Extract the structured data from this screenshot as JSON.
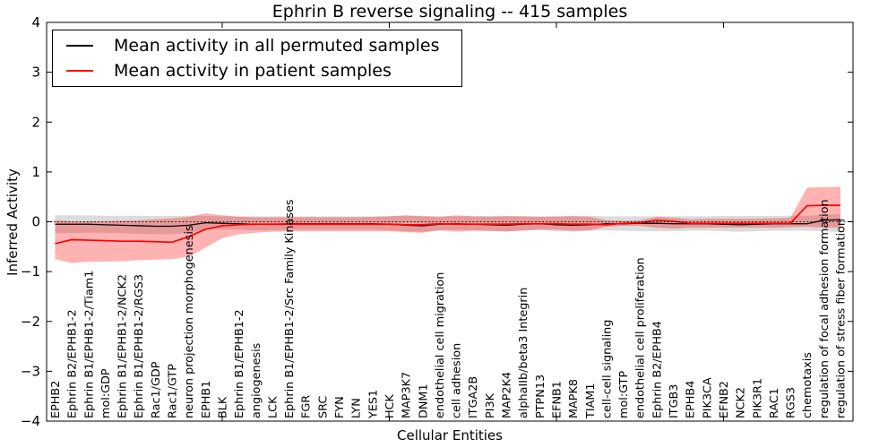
{
  "chart_data": {
    "type": "line",
    "title": "Ephrin B reverse signaling -- 415 samples",
    "xlabel": "Cellular Entities",
    "ylabel": "Inferred Activity",
    "ylim": [
      -4,
      4
    ],
    "yticks": [
      4,
      3,
      2,
      1,
      0,
      -1,
      -2,
      -3,
      -4
    ],
    "ytick_labels": [
      "4",
      "3",
      "2",
      "1",
      "0",
      "−1",
      "−2",
      "−3",
      "−4"
    ],
    "grid": false,
    "legend_position": "upper left",
    "zero_line": {
      "y": 0,
      "style": "dotted",
      "color": "#000000"
    },
    "categories": [
      "EPHB2",
      "Ephrin B2/EPHB1-2",
      "Ephrin B1/EPHB1-2/Tiam1",
      "mol:GDP",
      "Ephrin B1/EPHB1-2/NCK2",
      "Ephrin B1/EPHB1-2/RGS3",
      "Rac1/GDP",
      "Rac1/GTP",
      "neuron projection morphogenesis",
      "EPHB1",
      "BLK",
      "Ephrin B1/EPHB1-2",
      "angiogenesis",
      "LCK",
      "Ephrin B1/EPHB1-2/Src Family Kinases",
      "FGR",
      "SRC",
      "FYN",
      "LYN",
      "YES1",
      "HCK",
      "MAP3K7",
      "DNM1",
      "endothelial cell migration",
      "cell adhesion",
      "ITGA2B",
      "PI3K",
      "MAP2K4",
      "alphaIIb/beta3 Integrin",
      "PTPN13",
      "EFNB1",
      "MAPK8",
      "TIAM1",
      "cell-cell signaling",
      "mol:GTP",
      "endothelial cell proliferation",
      "Ephrin B2/EPHB4",
      "ITGB3",
      "EPHB4",
      "PIK3CA",
      "EFNB2",
      "NCK2",
      "PIK3R1",
      "RAC1",
      "RGS3",
      "chemotaxis",
      "regulation of focal adhesion formation",
      "regulation of stress fiber formation"
    ],
    "series": [
      {
        "name": "Mean activity in all permuted samples",
        "color": "#000000",
        "line_width": 1.3,
        "values": [
          -0.05,
          -0.05,
          -0.05,
          -0.06,
          -0.07,
          -0.08,
          -0.09,
          -0.09,
          -0.07,
          -0.02,
          -0.03,
          -0.04,
          -0.05,
          -0.05,
          -0.04,
          -0.04,
          -0.04,
          -0.04,
          -0.04,
          -0.04,
          -0.05,
          -0.07,
          -0.08,
          -0.05,
          -0.04,
          -0.05,
          -0.06,
          -0.07,
          -0.05,
          -0.04,
          -0.06,
          -0.07,
          -0.06,
          -0.04,
          -0.04,
          -0.03,
          -0.03,
          -0.04,
          -0.04,
          -0.04,
          -0.05,
          -0.06,
          -0.05,
          -0.04,
          -0.04,
          -0.04,
          0.03,
          0.04
        ],
        "band": {
          "color": "rgba(128,128,128,0.28)",
          "upper": [
            0.13,
            0.13,
            0.13,
            0.12,
            0.12,
            0.12,
            0.12,
            0.12,
            0.12,
            0.12,
            0.11,
            0.11,
            0.11,
            0.11,
            0.11,
            0.11,
            0.11,
            0.11,
            0.11,
            0.11,
            0.11,
            0.12,
            0.12,
            0.11,
            0.11,
            0.11,
            0.12,
            0.12,
            0.11,
            0.11,
            0.12,
            0.12,
            0.12,
            0.11,
            0.11,
            0.11,
            0.11,
            0.11,
            0.11,
            0.11,
            0.12,
            0.12,
            0.12,
            0.12,
            0.12,
            0.12,
            0.14,
            0.15
          ],
          "lower": [
            -0.23,
            -0.23,
            -0.22,
            -0.22,
            -0.23,
            -0.24,
            -0.25,
            -0.25,
            -0.22,
            -0.16,
            -0.16,
            -0.16,
            -0.17,
            -0.17,
            -0.16,
            -0.16,
            -0.16,
            -0.16,
            -0.16,
            -0.16,
            -0.17,
            -0.19,
            -0.2,
            -0.17,
            -0.16,
            -0.17,
            -0.19,
            -0.2,
            -0.17,
            -0.16,
            -0.19,
            -0.2,
            -0.18,
            -0.17,
            -0.18,
            -0.19,
            -0.19,
            -0.19,
            -0.18,
            -0.18,
            -0.19,
            -0.2,
            -0.19,
            -0.18,
            -0.18,
            -0.18,
            -0.19,
            -0.21
          ]
        }
      },
      {
        "name": "Mean activity in patient samples",
        "color": "#ff0000",
        "line_width": 1.7,
        "values": [
          -0.44,
          -0.36,
          -0.37,
          -0.38,
          -0.39,
          -0.39,
          -0.4,
          -0.41,
          -0.3,
          -0.15,
          -0.08,
          -0.06,
          -0.05,
          -0.05,
          -0.05,
          -0.05,
          -0.05,
          -0.05,
          -0.05,
          -0.05,
          -0.05,
          -0.06,
          -0.06,
          -0.04,
          -0.05,
          -0.05,
          -0.05,
          -0.05,
          -0.04,
          -0.04,
          -0.04,
          -0.05,
          -0.05,
          -0.06,
          -0.03,
          -0.02,
          0.03,
          0.01,
          -0.03,
          -0.03,
          -0.03,
          -0.03,
          -0.03,
          -0.03,
          -0.03,
          0.32,
          0.33,
          0.33
        ],
        "band": {
          "color": "rgba(255,0,0,0.30)",
          "upper": [
            0.03,
            0.01,
            0.01,
            0.01,
            0.02,
            0.03,
            0.05,
            0.07,
            0.1,
            0.17,
            0.13,
            0.1,
            0.09,
            0.09,
            0.09,
            0.09,
            0.09,
            0.09,
            0.09,
            0.1,
            0.11,
            0.13,
            0.11,
            0.1,
            0.13,
            0.11,
            0.1,
            0.11,
            0.11,
            0.1,
            0.1,
            0.11,
            0.1,
            0.03,
            0.02,
            0.03,
            0.1,
            0.08,
            0.05,
            0.06,
            0.06,
            0.06,
            0.06,
            0.07,
            0.08,
            0.68,
            0.7,
            0.7
          ],
          "lower": [
            -0.75,
            -0.83,
            -0.8,
            -0.8,
            -0.79,
            -0.77,
            -0.76,
            -0.75,
            -0.7,
            -0.52,
            -0.33,
            -0.25,
            -0.22,
            -0.2,
            -0.19,
            -0.19,
            -0.19,
            -0.19,
            -0.19,
            -0.19,
            -0.19,
            -0.21,
            -0.22,
            -0.17,
            -0.2,
            -0.18,
            -0.18,
            -0.19,
            -0.18,
            -0.16,
            -0.16,
            -0.18,
            -0.17,
            -0.1,
            -0.08,
            -0.08,
            -0.12,
            -0.14,
            -0.12,
            -0.12,
            -0.12,
            -0.12,
            -0.12,
            -0.12,
            -0.11,
            -0.1,
            -0.12,
            -0.12
          ]
        }
      }
    ]
  }
}
